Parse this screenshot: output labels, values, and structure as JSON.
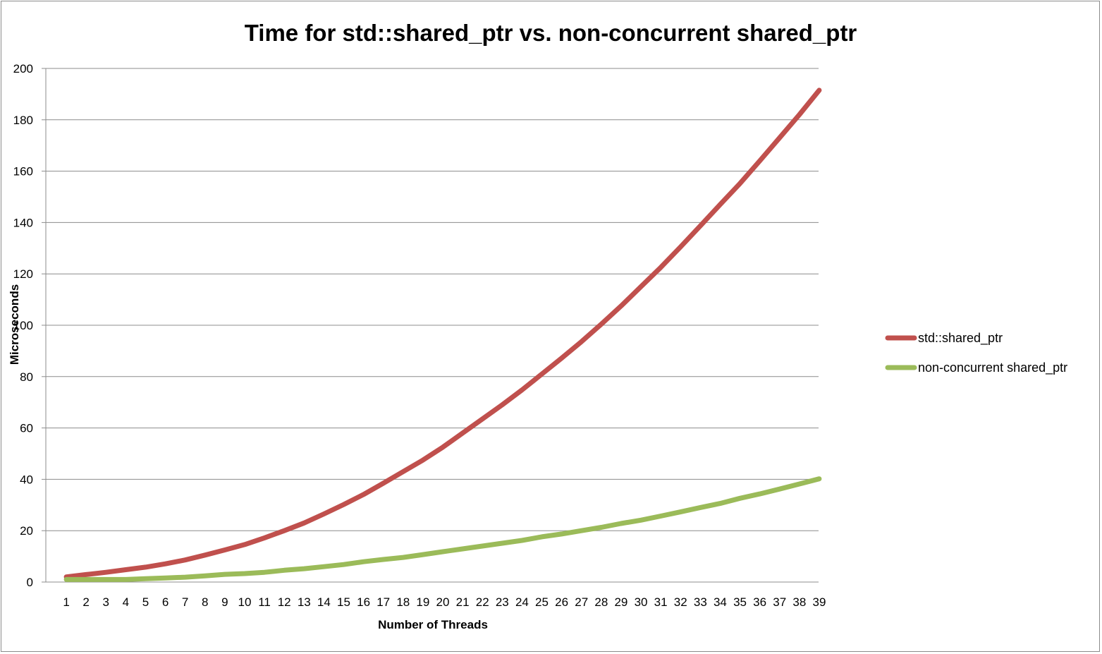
{
  "chart_data": {
    "type": "line",
    "title": "Time for std::shared_ptr vs. non-concurrent shared_ptr",
    "xlabel": "Number of Threads",
    "ylabel": "Microseconds",
    "categories": [
      "1",
      "2",
      "3",
      "4",
      "5",
      "6",
      "7",
      "8",
      "9",
      "10",
      "11",
      "12",
      "13",
      "14",
      "15",
      "16",
      "17",
      "18",
      "19",
      "20",
      "21",
      "22",
      "23",
      "24",
      "25",
      "26",
      "27",
      "28",
      "29",
      "30",
      "31",
      "32",
      "33",
      "34",
      "35",
      "36",
      "37",
      "38",
      "39"
    ],
    "ylim": [
      0,
      200
    ],
    "yticks": [
      0,
      20,
      40,
      60,
      80,
      100,
      120,
      140,
      160,
      180,
      200
    ],
    "grid": "horizontal",
    "legend_position": "right",
    "series": [
      {
        "name": "std::shared_ptr",
        "color": "#c0504d",
        "values": [
          2,
          2.9,
          3.8,
          4.8,
          5.8,
          7.1,
          8.6,
          10.5,
          12.5,
          14.6,
          17.2,
          20,
          23,
          26.5,
          30.2,
          34.1,
          38.5,
          43,
          47.5,
          52.5,
          58,
          63.5,
          69,
          74.8,
          81,
          87.2,
          93.6,
          100.4,
          107.5,
          115,
          122.5,
          130.5,
          138.7,
          147,
          155.2,
          164,
          173,
          182,
          191.5
        ]
      },
      {
        "name": "non-concurrent shared_ptr",
        "color": "#9bbb59",
        "values": [
          1,
          1,
          1,
          1,
          1.3,
          1.6,
          1.9,
          2.4,
          3,
          3.3,
          3.8,
          4.6,
          5.2,
          6,
          6.8,
          7.9,
          8.8,
          9.6,
          10.7,
          11.8,
          12.9,
          14,
          15.1,
          16.2,
          17.6,
          18.7,
          20,
          21.3,
          22.8,
          24.1,
          25.7,
          27.3,
          29,
          30.6,
          32.6,
          34.3,
          36.2,
          38.2,
          40.2
        ]
      }
    ]
  }
}
